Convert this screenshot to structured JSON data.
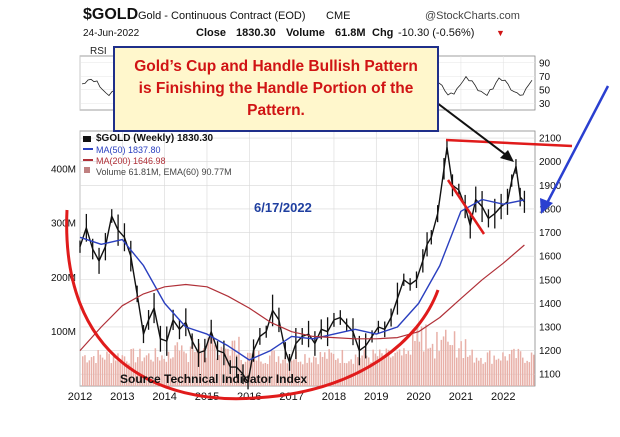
{
  "header": {
    "symbol": "$GOLD",
    "name": "Gold - Continuous Contract (EOD)",
    "exchange": "CME",
    "source": "@StockCharts.com",
    "date": "24-Jun-2022",
    "close_label": "Close",
    "close_value": "1830.30",
    "volume_label": "Volume",
    "volume_value": "61.8M",
    "change_label": "Chg",
    "change_value": "-10.30 (-0.56%)"
  },
  "callout": {
    "line1": "Gold’s Cup and Handle Bullish Pattern",
    "line2": "is Finishing the Handle Portion of the",
    "line3": "Pattern."
  },
  "annotations": {
    "date_note": "6/17/2022",
    "source_note": "Source Technical Indicator Index"
  },
  "colors": {
    "price": "#111111",
    "ma50": "#2a3fbf",
    "ma200": "#b03038",
    "cup": "#e01b1b",
    "callout_text": "#d01414",
    "callout_border": "#1f2f8a",
    "callout_bg": "#fff7cc",
    "blue_arrow": "#2a3fd0",
    "date_note": "#1f3fa0",
    "volume": "#e8b0a8"
  },
  "chart_data": {
    "type": "line",
    "title": "$GOLD Gold - Continuous Contract (EOD) CME",
    "main_label": "$GOLD (Weekly) 1830.30",
    "legend": [
      {
        "name": "MA(50) 1837.80",
        "color": "#2a3fbf"
      },
      {
        "name": "MA(200) 1646.98",
        "color": "#b03038"
      },
      {
        "name": "Volume 61.81M, EMA(60) 90.77M",
        "color": "#c08080"
      }
    ],
    "legend_position": "top-left",
    "x_ticks": [
      "2012",
      "2013",
      "2014",
      "2015",
      "2016",
      "2017",
      "2018",
      "2019",
      "2020",
      "2021",
      "2022"
    ],
    "y_ticks": [
      1100,
      1200,
      1300,
      1400,
      1500,
      1600,
      1700,
      1800,
      1900,
      2000,
      2100
    ],
    "y_range": [
      1050,
      2130
    ],
    "y_axis_side": "right",
    "volume_ticks": [
      "100M",
      "200M",
      "300M",
      "400M"
    ],
    "volume_range": [
      0,
      470
    ],
    "rsi_label": "RSI",
    "rsi_ticks": [
      30,
      50,
      70,
      90
    ],
    "rsi_range": [
      20,
      100
    ],
    "grid": true,
    "x_range": [
      2012.0,
      2022.75
    ],
    "series": [
      {
        "name": "$GOLD (Weekly)",
        "x": [
          2012.0,
          2012.15,
          2012.3,
          2012.45,
          2012.6,
          2012.75,
          2012.9,
          2013.05,
          2013.2,
          2013.35,
          2013.5,
          2013.62,
          2013.75,
          2013.9,
          2014.05,
          2014.2,
          2014.35,
          2014.5,
          2014.65,
          2014.8,
          2014.95,
          2015.1,
          2015.25,
          2015.4,
          2015.55,
          2015.7,
          2015.85,
          2015.97,
          2016.1,
          2016.25,
          2016.4,
          2016.55,
          2016.7,
          2016.85,
          2016.95,
          2017.1,
          2017.25,
          2017.4,
          2017.55,
          2017.7,
          2017.85,
          2018.0,
          2018.15,
          2018.3,
          2018.45,
          2018.6,
          2018.75,
          2018.9,
          2019.05,
          2019.2,
          2019.35,
          2019.5,
          2019.65,
          2019.8,
          2019.95,
          2020.1,
          2020.2,
          2020.3,
          2020.45,
          2020.6,
          2020.67,
          2020.8,
          2020.95,
          2021.1,
          2021.22,
          2021.35,
          2021.5,
          2021.65,
          2021.8,
          2021.95,
          2022.1,
          2022.2,
          2022.3,
          2022.4,
          2022.5
        ],
        "values": [
          1640,
          1720,
          1630,
          1580,
          1640,
          1770,
          1710,
          1680,
          1600,
          1440,
          1270,
          1330,
          1380,
          1250,
          1240,
          1330,
          1290,
          1320,
          1240,
          1190,
          1200,
          1280,
          1200,
          1190,
          1130,
          1130,
          1100,
          1065,
          1200,
          1260,
          1280,
          1370,
          1330,
          1200,
          1150,
          1230,
          1260,
          1270,
          1230,
          1290,
          1280,
          1330,
          1340,
          1310,
          1280,
          1200,
          1220,
          1260,
          1300,
          1290,
          1340,
          1420,
          1500,
          1480,
          1500,
          1580,
          1650,
          1680,
          1780,
          1970,
          2060,
          1900,
          1880,
          1810,
          1730,
          1840,
          1810,
          1760,
          1780,
          1810,
          1830,
          1920,
          1980,
          1850,
          1830
        ]
      },
      {
        "name": "MA(50)",
        "x": [
          2012.0,
          2012.5,
          2013.0,
          2013.5,
          2014.0,
          2014.5,
          2015.0,
          2015.5,
          2016.0,
          2016.5,
          2017.0,
          2017.5,
          2018.0,
          2018.5,
          2019.0,
          2019.5,
          2020.0,
          2020.5,
          2021.0,
          2021.5,
          2022.0,
          2022.5
        ],
        "values": [
          1680,
          1650,
          1670,
          1560,
          1400,
          1300,
          1270,
          1220,
          1160,
          1200,
          1260,
          1250,
          1270,
          1290,
          1270,
          1300,
          1400,
          1560,
          1790,
          1840,
          1820,
          1838
        ]
      },
      {
        "name": "MA(200)",
        "x": [
          2012.0,
          2012.5,
          2013.0,
          2013.5,
          2014.0,
          2014.5,
          2015.0,
          2015.5,
          2016.0,
          2016.5,
          2017.0,
          2017.5,
          2018.0,
          2018.5,
          2019.0,
          2019.5,
          2020.0,
          2020.5,
          2021.0,
          2021.5,
          2022.0,
          2022.5
        ],
        "values": [
          1200,
          1300,
          1390,
          1440,
          1470,
          1480,
          1470,
          1430,
          1380,
          1320,
          1280,
          1260,
          1255,
          1250,
          1250,
          1255,
          1280,
          1340,
          1420,
          1500,
          1570,
          1647
        ]
      }
    ]
  }
}
